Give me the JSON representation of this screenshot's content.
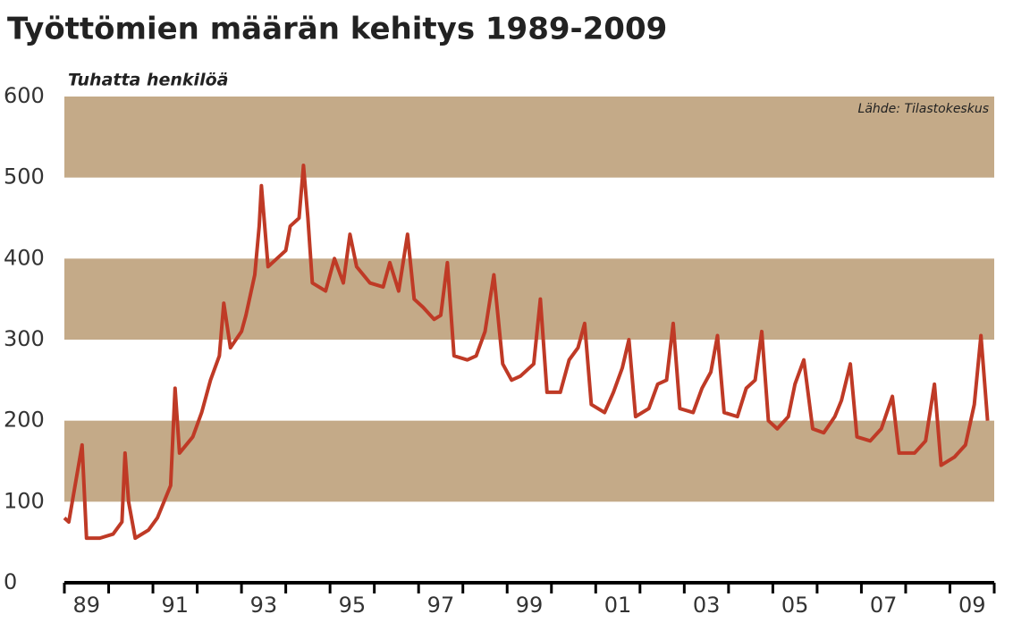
{
  "chart_data": {
    "type": "line",
    "title": "Työttömien määrän kehitys 1989-2009",
    "ylabel": "Tuhatta henkilöä",
    "source": "Lähde: Tilastokeskus",
    "band_color": "#c4aa88",
    "x": [
      1989.0,
      1989.1,
      1989.4,
      1989.5,
      1989.8,
      1990.1,
      1990.3,
      1990.37,
      1990.45,
      1990.6,
      1990.9,
      1991.1,
      1991.4,
      1991.5,
      1991.6,
      1991.9,
      1992.1,
      1992.3,
      1992.5,
      1992.6,
      1992.75,
      1993.0,
      1993.1,
      1993.3,
      1993.4,
      1993.45,
      1993.6,
      1993.8,
      1994.0,
      1994.1,
      1994.3,
      1994.4,
      1994.5,
      1994.6,
      1994.9,
      1995.1,
      1995.3,
      1995.45,
      1995.6,
      1995.9,
      1996.2,
      1996.35,
      1996.55,
      1996.75,
      1996.9,
      1997.1,
      1997.35,
      1997.5,
      1997.65,
      1997.8,
      1998.1,
      1998.3,
      1998.5,
      1998.7,
      1998.9,
      1999.1,
      1999.3,
      1999.6,
      1999.75,
      1999.9,
      2000.2,
      2000.4,
      2000.6,
      2000.75,
      2000.9,
      2001.2,
      2001.4,
      2001.6,
      2001.75,
      2001.9,
      2002.2,
      2002.4,
      2002.6,
      2002.75,
      2002.9,
      2003.2,
      2003.4,
      2003.6,
      2003.75,
      2003.9,
      2004.2,
      2004.4,
      2004.6,
      2004.75,
      2004.9,
      2005.1,
      2005.35,
      2005.5,
      2005.7,
      2005.9,
      2006.15,
      2006.4,
      2006.55,
      2006.75,
      2006.9,
      2007.2,
      2007.45,
      2007.7,
      2007.85,
      2008.2,
      2008.45,
      2008.65,
      2008.8,
      2009.1,
      2009.35,
      2009.55,
      2009.7,
      2009.85
    ],
    "series": [
      {
        "color": "#bf3a26",
        "values": [
          80,
          75,
          170,
          55,
          55,
          60,
          75,
          160,
          100,
          55,
          65,
          80,
          120,
          240,
          160,
          180,
          210,
          250,
          280,
          345,
          290,
          310,
          330,
          380,
          440,
          490,
          390,
          400,
          410,
          440,
          450,
          515,
          450,
          370,
          360,
          400,
          370,
          430,
          390,
          370,
          365,
          395,
          360,
          430,
          350,
          340,
          325,
          330,
          395,
          280,
          275,
          280,
          310,
          380,
          270,
          250,
          255,
          270,
          350,
          235,
          235,
          275,
          290,
          320,
          220,
          210,
          235,
          265,
          300,
          205,
          215,
          245,
          250,
          320,
          215,
          210,
          240,
          260,
          305,
          210,
          205,
          240,
          250,
          310,
          200,
          190,
          205,
          245,
          275,
          190,
          185,
          205,
          225,
          270,
          180,
          175,
          190,
          230,
          160,
          160,
          175,
          245,
          145,
          155,
          170,
          220,
          305,
          200
        ]
      }
    ],
    "xlim": [
      1989,
      2010
    ],
    "xticks": [
      {
        "value": 1989.5,
        "label": "89"
      },
      {
        "value": 1991.5,
        "label": "91"
      },
      {
        "value": 1993.5,
        "label": "93"
      },
      {
        "value": 1995.5,
        "label": "95"
      },
      {
        "value": 1997.5,
        "label": "97"
      },
      {
        "value": 1999.5,
        "label": "99"
      },
      {
        "value": 2001.5,
        "label": "01"
      },
      {
        "value": 2003.5,
        "label": "03"
      },
      {
        "value": 2005.5,
        "label": "05"
      },
      {
        "value": 2007.5,
        "label": "07"
      },
      {
        "value": 2009.5,
        "label": "09"
      }
    ],
    "ylim": [
      0,
      600
    ],
    "yticks": [
      0,
      100,
      200,
      300,
      400,
      500,
      600
    ]
  }
}
